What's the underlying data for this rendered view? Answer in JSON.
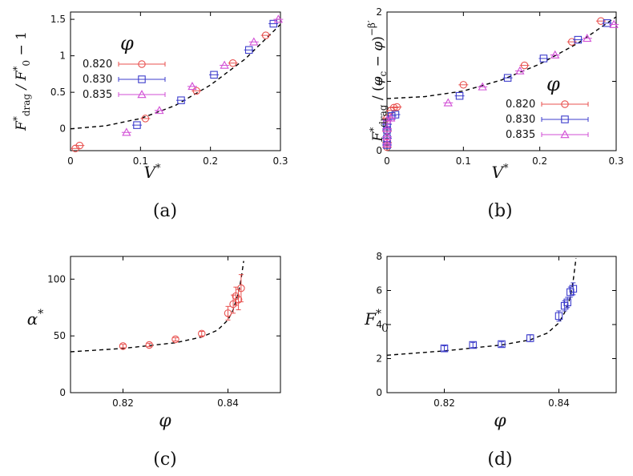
{
  "colors": {
    "phi_0820": "#e8514f",
    "phi_0830": "#3d3dcc",
    "phi_0835": "#d24fd6",
    "fit": "#000000"
  },
  "chart_data": [
    {
      "id": "a",
      "type": "scatter",
      "caption": "(a)",
      "xlabel": "V*",
      "ylabel": "F*drag / F*0 − 1",
      "xlim": [
        0,
        0.3
      ],
      "ylim": [
        -0.3,
        1.6
      ],
      "xticks": [
        0,
        0.1,
        0.2,
        0.3
      ],
      "xtick_labels": [
        "0",
        "0.1",
        "0.2",
        "0.3"
      ],
      "yticks": [
        0,
        0.5,
        1,
        1.5
      ],
      "ytick_labels": [
        "0",
        "0.5",
        "1",
        "1.5"
      ],
      "legend_title": "φ",
      "legend": [
        "0.820",
        "0.830",
        "0.835"
      ],
      "series": [
        {
          "name": "0.820",
          "marker": "circle",
          "color": "#e8514f",
          "x": [
            0.007,
            0.013,
            0.107,
            0.18,
            0.232,
            0.279
          ],
          "y": [
            -0.27,
            -0.23,
            0.14,
            0.52,
            0.9,
            1.28
          ]
        },
        {
          "name": "0.830",
          "marker": "square",
          "color": "#3d3dcc",
          "x": [
            0.095,
            0.158,
            0.205,
            0.255,
            0.29
          ],
          "y": [
            0.05,
            0.39,
            0.74,
            1.08,
            1.44
          ]
        },
        {
          "name": "0.835",
          "marker": "triangle",
          "color": "#d24fd6",
          "x": [
            0.08,
            0.127,
            0.174,
            0.22,
            0.262,
            0.297
          ],
          "y": [
            -0.05,
            0.25,
            0.58,
            0.87,
            1.19,
            1.5
          ]
        }
      ],
      "fit": {
        "x": [
          0.0,
          0.05,
          0.1,
          0.15,
          0.2,
          0.25,
          0.3
        ],
        "y": [
          0.0,
          0.04,
          0.14,
          0.32,
          0.6,
          0.96,
          1.43
        ]
      }
    },
    {
      "id": "b",
      "type": "scatter",
      "caption": "(b)",
      "xlabel": "V*",
      "ylabel": "F*drag / (φc − φ)^−β′",
      "xlim": [
        0,
        0.3
      ],
      "ylim": [
        0,
        2
      ],
      "xticks": [
        0,
        0.1,
        0.2,
        0.3
      ],
      "xtick_labels": [
        "0",
        "0.1",
        "0.2",
        "0.3"
      ],
      "yticks": [
        0,
        1,
        2
      ],
      "ytick_labels": [
        "0",
        "1",
        "2"
      ],
      "legend_title": "φ",
      "legend": [
        "0.820",
        "0.830",
        "0.835"
      ],
      "series": [
        {
          "name": "0.820",
          "marker": "circle",
          "color": "#e8514f",
          "x": [
            0.0,
            0.0,
            0.0,
            0.0,
            0.005,
            0.009,
            0.013,
            0.1,
            0.18,
            0.242,
            0.28
          ],
          "y": [
            0.05,
            0.12,
            0.28,
            0.47,
            0.58,
            0.62,
            0.63,
            0.95,
            1.23,
            1.57,
            1.87
          ]
        },
        {
          "name": "0.830",
          "marker": "square",
          "color": "#3d3dcc",
          "x": [
            0.0,
            0.0,
            0.0,
            0.0,
            0.006,
            0.011,
            0.095,
            0.158,
            0.205,
            0.25,
            0.288
          ],
          "y": [
            0.08,
            0.18,
            0.3,
            0.38,
            0.5,
            0.52,
            0.79,
            1.05,
            1.33,
            1.6,
            1.84
          ]
        },
        {
          "name": "0.835",
          "marker": "triangle",
          "color": "#d24fd6",
          "x": [
            0.0,
            0.0,
            0.0,
            0.0,
            0.005,
            0.08,
            0.125,
            0.174,
            0.22,
            0.262,
            0.297
          ],
          "y": [
            0.1,
            0.2,
            0.32,
            0.44,
            0.47,
            0.69,
            0.92,
            1.15,
            1.38,
            1.62,
            1.82
          ]
        }
      ],
      "fit": {
        "x": [
          0.0,
          0.05,
          0.1,
          0.15,
          0.2,
          0.25,
          0.3
        ],
        "y": [
          0.75,
          0.78,
          0.86,
          1.02,
          1.25,
          1.55,
          1.93
        ]
      }
    },
    {
      "id": "c",
      "type": "scatter",
      "caption": "(c)",
      "xlabel": "φ",
      "ylabel": "α*",
      "xlim": [
        0.81,
        0.85
      ],
      "ylim": [
        0,
        120
      ],
      "xticks": [
        0.82,
        0.84
      ],
      "xtick_labels": [
        "0.82",
        "0.84"
      ],
      "yticks": [
        0,
        50,
        100
      ],
      "ytick_labels": [
        "0",
        "50",
        "100"
      ],
      "series": [
        {
          "name": "α*",
          "marker": "circle",
          "color": "#e8514f",
          "x": [
            0.82,
            0.825,
            0.83,
            0.835,
            0.84,
            0.841,
            0.8415,
            0.842,
            0.8425
          ],
          "y": [
            41,
            42,
            47,
            52,
            70,
            78,
            85,
            82,
            92
          ],
          "yerr": [
            1.5,
            1.5,
            1.5,
            2,
            6,
            8,
            8,
            9,
            12
          ]
        }
      ],
      "fit": {
        "x": [
          0.81,
          0.82,
          0.83,
          0.835,
          0.838,
          0.84,
          0.841,
          0.842,
          0.8425,
          0.843
        ],
        "y": [
          36,
          39,
          44,
          49,
          55,
          64,
          73,
          88,
          100,
          116
        ]
      }
    },
    {
      "id": "d",
      "type": "scatter",
      "caption": "(d)",
      "xlabel": "φ",
      "ylabel": "F*0",
      "xlim": [
        0.81,
        0.85
      ],
      "ylim": [
        0,
        8
      ],
      "xticks": [
        0.82,
        0.84
      ],
      "xtick_labels": [
        "0.82",
        "0.84"
      ],
      "yticks": [
        0,
        2,
        4,
        6,
        8
      ],
      "ytick_labels": [
        "0",
        "2",
        "4",
        "6",
        "8"
      ],
      "series": [
        {
          "name": "F*0",
          "marker": "square",
          "color": "#3d3dcc",
          "x": [
            0.82,
            0.825,
            0.83,
            0.835,
            0.84,
            0.841,
            0.8415,
            0.842,
            0.8425
          ],
          "y": [
            2.6,
            2.8,
            2.85,
            3.2,
            4.5,
            5.1,
            5.3,
            5.9,
            6.1
          ],
          "yerr": [
            0.15,
            0.15,
            0.15,
            0.2,
            0.3,
            0.3,
            0.3,
            0.3,
            0.35
          ]
        }
      ],
      "fit": {
        "x": [
          0.81,
          0.82,
          0.83,
          0.835,
          0.838,
          0.84,
          0.841,
          0.842,
          0.8425,
          0.843
        ],
        "y": [
          2.2,
          2.45,
          2.8,
          3.1,
          3.5,
          4.1,
          4.7,
          5.6,
          6.6,
          7.9
        ]
      }
    }
  ]
}
